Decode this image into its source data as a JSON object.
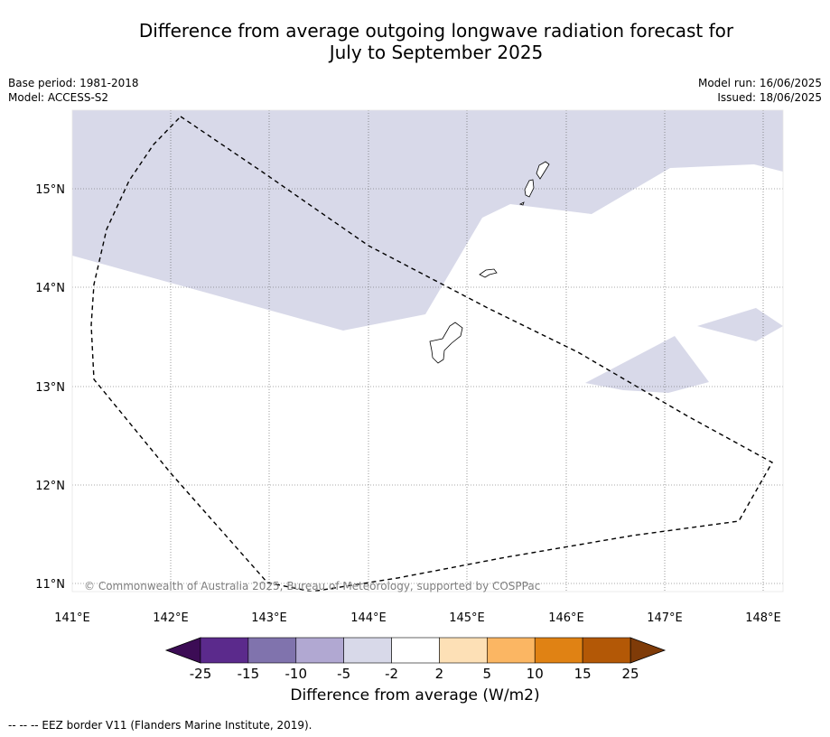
{
  "header": {
    "title_line1": "Difference from average outgoing longwave radiation forecast for",
    "title_line2": "July to September 2025"
  },
  "meta": {
    "base_period": "Base period: 1981-2018",
    "model": "Model: ACCESS-S2",
    "model_run": "Model run: 16/06/2025",
    "issued": "Issued: 18/06/2025"
  },
  "map": {
    "lat_labels": [
      "15°N",
      "14°N",
      "13°N",
      "12°N",
      "11°N"
    ],
    "lon_labels": [
      "141°E",
      "142°E",
      "143°E",
      "144°E",
      "145°E",
      "146°E",
      "147°E",
      "148°E"
    ],
    "copyright": "© Commonwealth of Australia 2025, Bureau of Meteorology, supported by COSPPac",
    "anomaly_fill_color": "#d8d9e9",
    "land_outline_color": "#000000",
    "eez_line_style": "dashed"
  },
  "colorbar": {
    "ticks": [
      "-25",
      "-15",
      "-10",
      "-5",
      "-2",
      "2",
      "5",
      "10",
      "15",
      "25"
    ],
    "colors": [
      "#5b2a8c",
      "#8073ad",
      "#b1a8d2",
      "#d8d9e9",
      "#ffffff",
      "#fde0b6",
      "#fbb663",
      "#e08214",
      "#b35806"
    ],
    "under_color": "#3c0c55",
    "over_color": "#7f3b08",
    "label": "Difference from average (W/m2)"
  },
  "footer": {
    "legend_text": "--  --  -- EEZ border V11 (Flanders Marine Institute, 2019)."
  }
}
